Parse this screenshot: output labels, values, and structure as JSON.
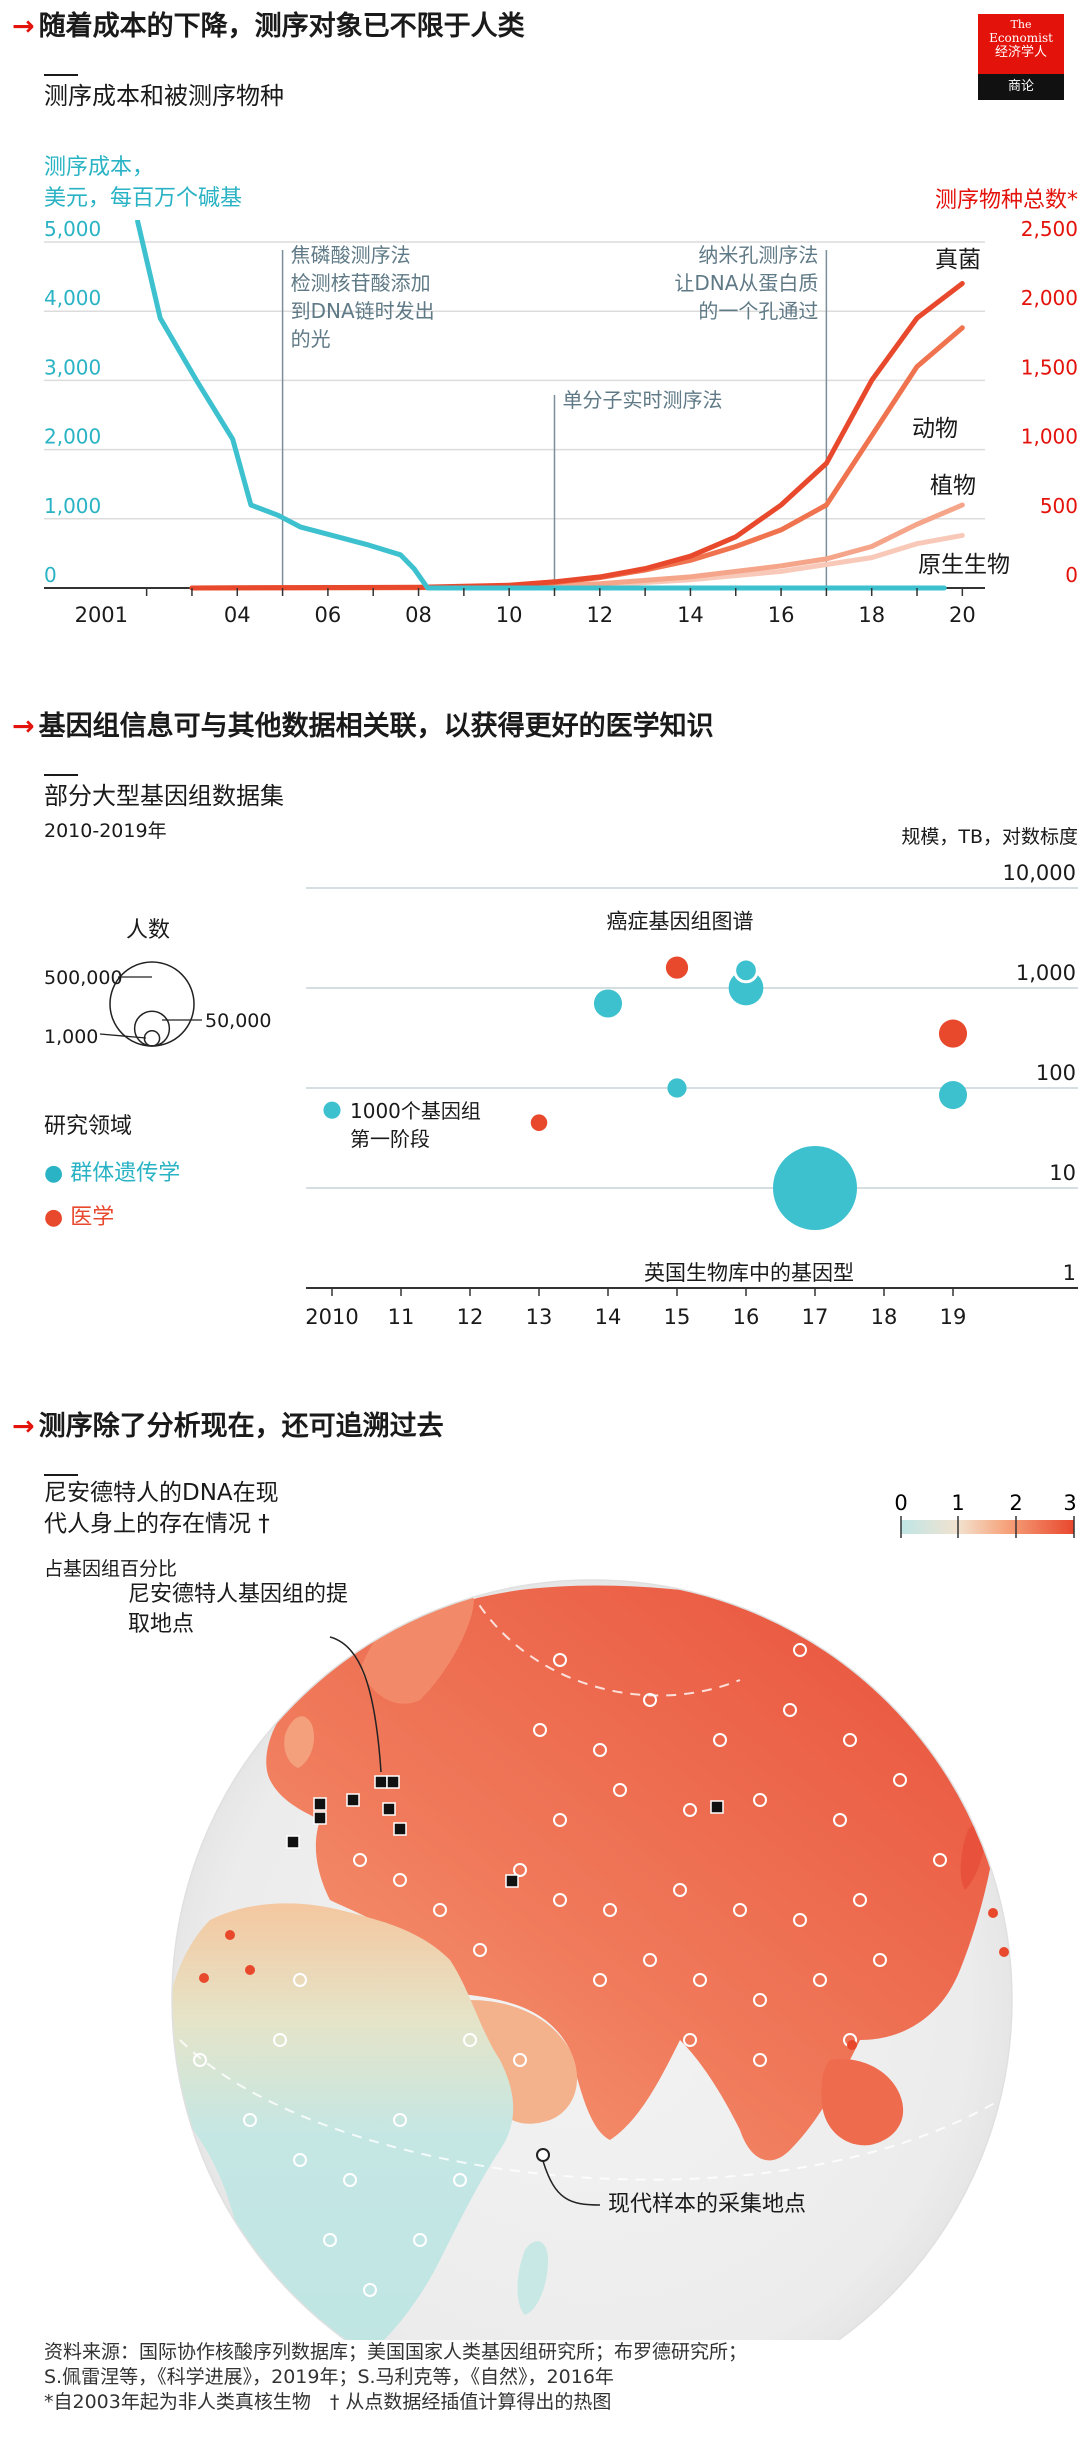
{
  "logo": {
    "line1": "The",
    "line2": "Economist",
    "line3": "经济学人",
    "line4": "商论"
  },
  "sections": [
    {
      "arrow": "→",
      "title": "随着成本的下降，测序对象已不限于人类",
      "subtitle": "测序成本和被测序物种"
    },
    {
      "arrow": "→",
      "title": "基因组信息可与其他数据相关联，以获得更好的医学知识",
      "subtitle": "部分大型基因组数据集",
      "note": "2010-2019年"
    },
    {
      "arrow": "→",
      "title": "测序除了分析现在，还可追溯过去",
      "subtitle_line1": "尼安德特人的DNA在现",
      "subtitle_line2": "代人身上的存在情况 †",
      "note": "占基因组百分比"
    }
  ],
  "chart_data": [
    {
      "type": "line",
      "left_axis_label_line1": "测序成本，",
      "left_axis_label_line2": "美元，每百万个碱基",
      "right_axis_label": "测序物种总数*",
      "left_ticks": [
        "5,000",
        "4,000",
        "3,000",
        "2,000",
        "1,000",
        "0"
      ],
      "right_ticks": [
        "2,500",
        "2,000",
        "1,500",
        "1,000",
        "500",
        "0"
      ],
      "x_ticks": [
        "2001",
        "04",
        "06",
        "08",
        "10",
        "12",
        "14",
        "16",
        "18",
        "20"
      ],
      "ylim_left": [
        0,
        5000
      ],
      "ylim_right": [
        0,
        2500
      ],
      "series": [
        {
          "name": "测序成本",
          "axis": "left",
          "color": "#3ec1cf",
          "points": [
            [
              2001.8,
              5300
            ],
            [
              2002.3,
              3900
            ],
            [
              2003.1,
              3000
            ],
            [
              2003.9,
              2150
            ],
            [
              2004.3,
              1200
            ],
            [
              2004.9,
              1050
            ],
            [
              2005.4,
              880
            ],
            [
              2006.1,
              760
            ],
            [
              2006.9,
              620
            ],
            [
              2007.6,
              480
            ],
            [
              2007.9,
              280
            ],
            [
              2008.2,
              0
            ],
            [
              2019.6,
              0
            ]
          ]
        },
        {
          "name": "真菌",
          "axis": "right",
          "color": "#e8492c",
          "points": [
            [
              2003,
              0
            ],
            [
              2008,
              5
            ],
            [
              2010,
              20
            ],
            [
              2011,
              45
            ],
            [
              2012,
              80
            ],
            [
              2013,
              140
            ],
            [
              2014,
              230
            ],
            [
              2015,
              370
            ],
            [
              2016,
              600
            ],
            [
              2017,
              900
            ],
            [
              2018,
              1500
            ],
            [
              2019,
              1950
            ],
            [
              2020,
              2200
            ]
          ]
        },
        {
          "name": "动物",
          "axis": "right",
          "color": "#f0734f",
          "points": [
            [
              2003,
              0
            ],
            [
              2008,
              3
            ],
            [
              2010,
              15
            ],
            [
              2011,
              40
            ],
            [
              2012,
              75
            ],
            [
              2013,
              130
            ],
            [
              2014,
              200
            ],
            [
              2015,
              300
            ],
            [
              2016,
              420
            ],
            [
              2017,
              600
            ],
            [
              2018,
              1100
            ],
            [
              2019,
              1600
            ],
            [
              2020,
              1880
            ]
          ]
        },
        {
          "name": "植物",
          "axis": "right",
          "color": "#f5a58a",
          "points": [
            [
              2003,
              0
            ],
            [
              2010,
              5
            ],
            [
              2012,
              30
            ],
            [
              2014,
              80
            ],
            [
              2016,
              160
            ],
            [
              2017,
              210
            ],
            [
              2018,
              300
            ],
            [
              2019,
              460
            ],
            [
              2020,
              600
            ]
          ]
        },
        {
          "name": "原生生物",
          "axis": "right",
          "color": "#f8c9b8",
          "points": [
            [
              2003,
              0
            ],
            [
              2010,
              3
            ],
            [
              2012,
              20
            ],
            [
              2014,
              60
            ],
            [
              2016,
              120
            ],
            [
              2018,
              220
            ],
            [
              2019,
              320
            ],
            [
              2020,
              380
            ]
          ]
        }
      ],
      "annotations": [
        {
          "x": 2005,
          "lines": [
            "焦磷酸测序法",
            "检测核苷酸添加",
            "到DNA链时发出",
            "的光"
          ]
        },
        {
          "x": 2011,
          "lines": [
            "单分子实时测序法"
          ]
        },
        {
          "x": 2017,
          "lines": [
            "纳米孔测序法",
            "让DNA从蛋白质",
            "的一个孔通过"
          ]
        }
      ]
    },
    {
      "type": "scatter",
      "y_axis_label": "规模，TB，对数标度",
      "y_ticks": [
        "10,000",
        "1,000",
        "100",
        "10",
        "1"
      ],
      "x_ticks": [
        "2010",
        "11",
        "12",
        "13",
        "14",
        "15",
        "16",
        "17",
        "18",
        "19"
      ],
      "xlim": [
        2010,
        2020
      ],
      "ylim_log10": [
        0,
        4
      ],
      "size_legend": {
        "title": "人数",
        "labels": [
          "500,000",
          "50,000",
          "1,000"
        ],
        "values": [
          500000,
          50000,
          1000
        ]
      },
      "color_legend": {
        "title": "研究领域",
        "items": [
          {
            "name": "群体遗传学",
            "color": "#3ec1cf"
          },
          {
            "name": "医学",
            "color": "#e8492c"
          }
        ]
      },
      "points": [
        {
          "year": 2010,
          "tb": 60,
          "people": 2500,
          "field": "群体遗传学",
          "label_line1": "1000个基因组",
          "label_line2": "第一阶段"
        },
        {
          "year": 2013,
          "tb": 45,
          "people": 2000,
          "field": "医学"
        },
        {
          "year": 2014,
          "tb": 700,
          "people": 25000,
          "field": "群体遗传学"
        },
        {
          "year": 2015,
          "tb": 1600,
          "people": 10000,
          "field": "医学"
        },
        {
          "year": 2015,
          "tb": 100,
          "people": 5000,
          "field": "群体遗传学"
        },
        {
          "year": 2016,
          "tb": 1000,
          "people": 50000,
          "field": "群体遗传学"
        },
        {
          "year": 2016,
          "tb": 1500,
          "people": 11000,
          "field": "群体遗传学",
          "outline": true,
          "label": "癌症基因组图谱"
        },
        {
          "year": 2017,
          "tb": 10,
          "people": 500000,
          "field": "群体遗传学",
          "label": "英国生物库中的基因型"
        },
        {
          "year": 2019,
          "tb": 350,
          "people": 25000,
          "field": "医学"
        },
        {
          "year": 2019,
          "tb": 85,
          "people": 25000,
          "field": "群体遗传学"
        }
      ]
    },
    {
      "type": "heatmap",
      "scale_ticks": [
        "0",
        "1",
        "2",
        "3"
      ],
      "scale_range": [
        0,
        3
      ],
      "legend_extraction": "尼安德特人基因组的提取地点",
      "legend_samples": "现代样本的采集地点"
    }
  ],
  "sources": {
    "line1": "资料来源：国际协作核酸序列数据库；美国国家人类基因组研究所；布罗德研究所；",
    "line2": "S.佩雷涅等，《科学进展》，2019年；S.马利克等，《自然》，2016年",
    "line3": "*自2003年起为非人类真核生物　† 从点数据经插值计算得出的热图"
  }
}
